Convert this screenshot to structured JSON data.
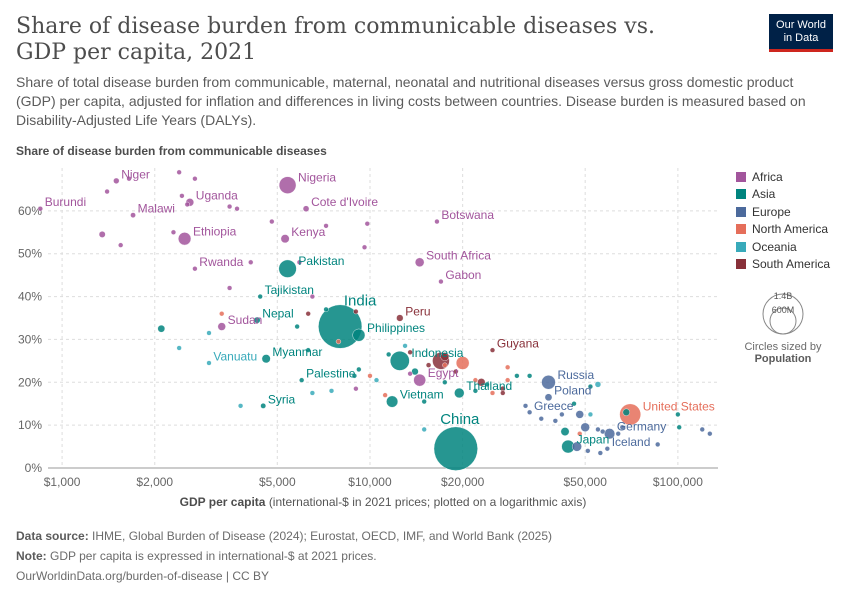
{
  "header": {
    "title": "Share of disease burden from communicable diseases vs. GDP per capita, 2021",
    "subtitle": "Share of total disease burden from communicable, maternal, neonatal and nutritional diseases versus gross domestic product (GDP) per capita, adjusted for inflation and differences in living costs between countries. Disease burden is measured based on Disability-Adjusted Life Years (DALYs).",
    "logo_line1": "Our World",
    "logo_line2": "in Data"
  },
  "footer": {
    "source_label": "Data source:",
    "source_text": "IHME, Global Burden of Disease (2024); Eurostat, OECD, IMF, and World Bank (2025)",
    "note_label": "Note:",
    "note_text": "GDP per capita is expressed in international-$ at 2021 prices.",
    "url": "OurWorldinData.org/burden-of-disease | CC BY"
  },
  "size_legend": {
    "large": "1.4B",
    "small": "600M",
    "caption": "Circles sized by",
    "variable": "Population"
  },
  "colors": {
    "Africa": "#a2559c",
    "Asia": "#00847e",
    "Europe": "#4c6a9c",
    "North America": "#e56e5a",
    "Oceania": "#38aaba",
    "South America": "#883039"
  },
  "chart_data": {
    "type": "scatter",
    "ylabel": "Share of disease burden from communicable diseases",
    "xlabel_bold": "GDP per capita",
    "xlabel_rest": "(international-$ in 2021 prices; plotted on a logarithmic axis)",
    "x_scale": "log",
    "xlim": [
      900,
      135000
    ],
    "ylim": [
      0,
      70
    ],
    "x_ticks": [
      1000,
      2000,
      5000,
      10000,
      20000,
      50000,
      100000
    ],
    "x_tick_labels": [
      "$1,000",
      "$2,000",
      "$5,000",
      "$10,000",
      "$20,000",
      "$50,000",
      "$100,000"
    ],
    "y_ticks": [
      0,
      10,
      20,
      30,
      40,
      50,
      60
    ],
    "y_tick_labels": [
      "0%",
      "10%",
      "20%",
      "30%",
      "40%",
      "50%",
      "60%"
    ],
    "grid": "dashed horizontal and vertical",
    "legend_position": "right",
    "legend": [
      "Africa",
      "Asia",
      "Europe",
      "North America",
      "Oceania",
      "South America"
    ],
    "labeled_points": [
      {
        "name": "Niger",
        "continent": "Africa",
        "x": 1500,
        "y": 67,
        "pop": 25
      },
      {
        "name": "Burundi",
        "continent": "Africa",
        "x": 850,
        "y": 60.5,
        "pop": 12
      },
      {
        "name": "Malawi",
        "continent": "Africa",
        "x": 1700,
        "y": 59,
        "pop": 20
      },
      {
        "name": "Uganda",
        "continent": "Africa",
        "x": 2600,
        "y": 62,
        "pop": 46
      },
      {
        "name": "Nigeria",
        "continent": "Africa",
        "x": 5400,
        "y": 66,
        "pop": 213
      },
      {
        "name": "Cote d'Ivoire",
        "continent": "Africa",
        "x": 6200,
        "y": 60.5,
        "pop": 27
      },
      {
        "name": "Ethiopia",
        "continent": "Africa",
        "x": 2500,
        "y": 53.5,
        "pop": 120
      },
      {
        "name": "Kenya",
        "continent": "Africa",
        "x": 5300,
        "y": 53.5,
        "pop": 53
      },
      {
        "name": "Botswana",
        "continent": "Africa",
        "x": 16500,
        "y": 57.5,
        "pop": 2.6
      },
      {
        "name": "South Africa",
        "continent": "Africa",
        "x": 14500,
        "y": 48,
        "pop": 60
      },
      {
        "name": "Rwanda",
        "continent": "Africa",
        "x": 2700,
        "y": 46.5,
        "pop": 13
      },
      {
        "name": "Gabon",
        "continent": "Africa",
        "x": 17000,
        "y": 43.5,
        "pop": 2.3
      },
      {
        "name": "Sudan",
        "continent": "Africa",
        "x": 3300,
        "y": 33,
        "pop": 46
      },
      {
        "name": "Egypt",
        "continent": "Africa",
        "x": 14500,
        "y": 20.5,
        "pop": 109
      },
      {
        "name": "Pakistan",
        "continent": "Asia",
        "x": 5400,
        "y": 46.5,
        "pop": 231
      },
      {
        "name": "Tajikistan",
        "continent": "Asia",
        "x": 4400,
        "y": 40,
        "pop": 10
      },
      {
        "name": "Nepal",
        "continent": "Asia",
        "x": 4300,
        "y": 34.5,
        "pop": 30
      },
      {
        "name": "India",
        "continent": "Asia",
        "x": 8000,
        "y": 33,
        "pop": 1410
      },
      {
        "name": "Philippines",
        "continent": "Asia",
        "x": 9200,
        "y": 31,
        "pop": 114
      },
      {
        "name": "Myanmar",
        "continent": "Asia",
        "x": 4600,
        "y": 25.5,
        "pop": 54
      },
      {
        "name": "Indonesia",
        "continent": "Asia",
        "x": 12500,
        "y": 25,
        "pop": 274
      },
      {
        "name": "Palestine",
        "continent": "Asia",
        "x": 6000,
        "y": 20.5,
        "pop": 5
      },
      {
        "name": "Vietnam",
        "continent": "Asia",
        "x": 11800,
        "y": 15.5,
        "pop": 98
      },
      {
        "name": "Syria",
        "continent": "Asia",
        "x": 4500,
        "y": 14.5,
        "pop": 21
      },
      {
        "name": "Thailand",
        "continent": "Asia",
        "x": 19500,
        "y": 17.5,
        "pop": 72
      },
      {
        "name": "China",
        "continent": "Asia",
        "x": 19000,
        "y": 4.5,
        "pop": 1420
      },
      {
        "name": "Japan",
        "continent": "Asia",
        "x": 44000,
        "y": 5,
        "pop": 125
      },
      {
        "name": "Russia",
        "continent": "Europe",
        "x": 38000,
        "y": 20,
        "pop": 145
      },
      {
        "name": "Poland",
        "continent": "Europe",
        "x": 38000,
        "y": 16.5,
        "pop": 38
      },
      {
        "name": "Greece",
        "continent": "Europe",
        "x": 33000,
        "y": 13,
        "pop": 10
      },
      {
        "name": "Germany",
        "continent": "Europe",
        "x": 60000,
        "y": 8,
        "pop": 83
      },
      {
        "name": "Iceland",
        "continent": "Europe",
        "x": 59000,
        "y": 4.5,
        "pop": 0.4
      },
      {
        "name": "United States",
        "continent": "North America",
        "x": 70000,
        "y": 12.5,
        "pop": 333
      },
      {
        "name": "Vanuatu",
        "continent": "Oceania",
        "x": 3000,
        "y": 24.5,
        "pop": 0.3
      },
      {
        "name": "Peru",
        "continent": "South America",
        "x": 12500,
        "y": 35,
        "pop": 34
      },
      {
        "name": "Guyana",
        "continent": "South America",
        "x": 25000,
        "y": 27.5,
        "pop": 0.8
      }
    ],
    "other_points": [
      {
        "continent": "Africa",
        "x": 1350,
        "y": 54.5,
        "pop": 30
      },
      {
        "continent": "Africa",
        "x": 1550,
        "y": 52,
        "pop": 6
      },
      {
        "continent": "Africa",
        "x": 1400,
        "y": 64.5,
        "pop": 12
      },
      {
        "continent": "Africa",
        "x": 1650,
        "y": 67.5,
        "pop": 6
      },
      {
        "continent": "Africa",
        "x": 2400,
        "y": 69,
        "pop": 8
      },
      {
        "continent": "Africa",
        "x": 2450,
        "y": 63.5,
        "pop": 10
      },
      {
        "continent": "Africa",
        "x": 2700,
        "y": 67.5,
        "pop": 6
      },
      {
        "continent": "Africa",
        "x": 2550,
        "y": 61.5,
        "pop": 8
      },
      {
        "continent": "Africa",
        "x": 3500,
        "y": 61,
        "pop": 8
      },
      {
        "continent": "Africa",
        "x": 3700,
        "y": 60.5,
        "pop": 6
      },
      {
        "continent": "Africa",
        "x": 2300,
        "y": 55,
        "pop": 6
      },
      {
        "continent": "Africa",
        "x": 4800,
        "y": 57.5,
        "pop": 9
      },
      {
        "continent": "Africa",
        "x": 7200,
        "y": 56.5,
        "pop": 5
      },
      {
        "continent": "Africa",
        "x": 9800,
        "y": 57,
        "pop": 5
      },
      {
        "continent": "Africa",
        "x": 9600,
        "y": 51.5,
        "pop": 5
      },
      {
        "continent": "Africa",
        "x": 4100,
        "y": 48,
        "pop": 4
      },
      {
        "continent": "Africa",
        "x": 5900,
        "y": 48,
        "pop": 6
      },
      {
        "continent": "Africa",
        "x": 3500,
        "y": 42,
        "pop": 6
      },
      {
        "continent": "Africa",
        "x": 6500,
        "y": 40,
        "pop": 4
      },
      {
        "continent": "Africa",
        "x": 9000,
        "y": 18.5,
        "pop": 5
      },
      {
        "continent": "Africa",
        "x": 13500,
        "y": 22,
        "pop": 12
      },
      {
        "continent": "Asia",
        "x": 2100,
        "y": 32.5,
        "pop": 38
      },
      {
        "continent": "Asia",
        "x": 5800,
        "y": 33,
        "pop": 6
      },
      {
        "continent": "Asia",
        "x": 7200,
        "y": 37,
        "pop": 4
      },
      {
        "continent": "Asia",
        "x": 6300,
        "y": 27.5,
        "pop": 3
      },
      {
        "continent": "Asia",
        "x": 8900,
        "y": 21.5,
        "pop": 4
      },
      {
        "continent": "Asia",
        "x": 9200,
        "y": 23,
        "pop": 5
      },
      {
        "continent": "Asia",
        "x": 11500,
        "y": 26.5,
        "pop": 8
      },
      {
        "continent": "Asia",
        "x": 14000,
        "y": 22.5,
        "pop": 35
      },
      {
        "continent": "Asia",
        "x": 17500,
        "y": 20,
        "pop": 7
      },
      {
        "continent": "Asia",
        "x": 15000,
        "y": 15.5,
        "pop": 8
      },
      {
        "continent": "Asia",
        "x": 22000,
        "y": 18,
        "pop": 6
      },
      {
        "continent": "Asia",
        "x": 24000,
        "y": 19.5,
        "pop": 5
      },
      {
        "continent": "Asia",
        "x": 30000,
        "y": 21.5,
        "pop": 5
      },
      {
        "continent": "Asia",
        "x": 33000,
        "y": 21.5,
        "pop": 4
      },
      {
        "continent": "Asia",
        "x": 46000,
        "y": 15,
        "pop": 9
      },
      {
        "continent": "Asia",
        "x": 52000,
        "y": 19,
        "pop": 4
      },
      {
        "continent": "Asia",
        "x": 68000,
        "y": 13,
        "pop": 36
      },
      {
        "continent": "Asia",
        "x": 100000,
        "y": 12.5,
        "pop": 3
      },
      {
        "continent": "Asia",
        "x": 101000,
        "y": 9.5,
        "pop": 5
      },
      {
        "continent": "Asia",
        "x": 43000,
        "y": 8.5,
        "pop": 52
      },
      {
        "continent": "Europe",
        "x": 42000,
        "y": 12.5,
        "pop": 11
      },
      {
        "continent": "Europe",
        "x": 40000,
        "y": 11,
        "pop": 5
      },
      {
        "continent": "Europe",
        "x": 36000,
        "y": 11.5,
        "pop": 7
      },
      {
        "continent": "Europe",
        "x": 48000,
        "y": 12.5,
        "pop": 47
      },
      {
        "continent": "Europe",
        "x": 50000,
        "y": 9.5,
        "pop": 59
      },
      {
        "continent": "Europe",
        "x": 55000,
        "y": 9,
        "pop": 10
      },
      {
        "continent": "Europe",
        "x": 57000,
        "y": 8.5,
        "pop": 17
      },
      {
        "continent": "Europe",
        "x": 64000,
        "y": 8,
        "pop": 9
      },
      {
        "continent": "Europe",
        "x": 66000,
        "y": 9.5,
        "pop": 6
      },
      {
        "continent": "Europe",
        "x": 47000,
        "y": 5,
        "pop": 67
      },
      {
        "continent": "Europe",
        "x": 51000,
        "y": 4,
        "pop": 5
      },
      {
        "continent": "Europe",
        "x": 56000,
        "y": 3.5,
        "pop": 5
      },
      {
        "continent": "Europe",
        "x": 86000,
        "y": 5.5,
        "pop": 5
      },
      {
        "continent": "Europe",
        "x": 120000,
        "y": 9,
        "pop": 6
      },
      {
        "continent": "Europe",
        "x": 127000,
        "y": 8,
        "pop": 1
      },
      {
        "continent": "Europe",
        "x": 32000,
        "y": 14.5,
        "pop": 5
      },
      {
        "continent": "North America",
        "x": 3300,
        "y": 36,
        "pop": 3
      },
      {
        "continent": "North America",
        "x": 7900,
        "y": 29.5,
        "pop": 11
      },
      {
        "continent": "North America",
        "x": 10000,
        "y": 21.5,
        "pop": 4
      },
      {
        "continent": "North America",
        "x": 11200,
        "y": 17,
        "pop": 3
      },
      {
        "continent": "North America",
        "x": 17500,
        "y": 24,
        "pop": 6
      },
      {
        "continent": "North America",
        "x": 20000,
        "y": 24.5,
        "pop": 127
      },
      {
        "continent": "North America",
        "x": 22000,
        "y": 20.5,
        "pop": 5
      },
      {
        "continent": "North America",
        "x": 25000,
        "y": 17.5,
        "pop": 3
      },
      {
        "continent": "North America",
        "x": 28000,
        "y": 23.5,
        "pop": 4
      },
      {
        "continent": "North America",
        "x": 28000,
        "y": 20.5,
        "pop": 3
      },
      {
        "continent": "North America",
        "x": 48000,
        "y": 8,
        "pop": 4
      },
      {
        "continent": "Oceania",
        "x": 2400,
        "y": 28,
        "pop": 1
      },
      {
        "continent": "Oceania",
        "x": 3000,
        "y": 31.5,
        "pop": 1
      },
      {
        "continent": "Oceania",
        "x": 3800,
        "y": 14.5,
        "pop": 1
      },
      {
        "continent": "Oceania",
        "x": 6500,
        "y": 17.5,
        "pop": 1
      },
      {
        "continent": "Oceania",
        "x": 7500,
        "y": 18,
        "pop": 1
      },
      {
        "continent": "Oceania",
        "x": 10500,
        "y": 20.5,
        "pop": 1
      },
      {
        "continent": "Oceania",
        "x": 13000,
        "y": 28.5,
        "pop": 1
      },
      {
        "continent": "Oceania",
        "x": 15000,
        "y": 9,
        "pop": 1
      },
      {
        "continent": "Oceania",
        "x": 55000,
        "y": 19.5,
        "pop": 26
      },
      {
        "continent": "Oceania",
        "x": 52000,
        "y": 12.5,
        "pop": 5
      },
      {
        "continent": "South America",
        "x": 6300,
        "y": 36,
        "pop": 4
      },
      {
        "continent": "South America",
        "x": 9000,
        "y": 36.5,
        "pop": 4
      },
      {
        "continent": "South America",
        "x": 13500,
        "y": 27,
        "pop": 7
      },
      {
        "continent": "South America",
        "x": 17000,
        "y": 25,
        "pop": 214
      },
      {
        "continent": "South America",
        "x": 17500,
        "y": 26,
        "pop": 52
      },
      {
        "continent": "South America",
        "x": 15500,
        "y": 24,
        "pop": 18
      },
      {
        "continent": "South America",
        "x": 23000,
        "y": 20,
        "pop": 45
      },
      {
        "continent": "South America",
        "x": 19000,
        "y": 22.5,
        "pop": 12
      },
      {
        "continent": "South America",
        "x": 27000,
        "y": 18.5,
        "pop": 20
      },
      {
        "continent": "South America",
        "x": 27000,
        "y": 17.5,
        "pop": 3
      }
    ]
  }
}
